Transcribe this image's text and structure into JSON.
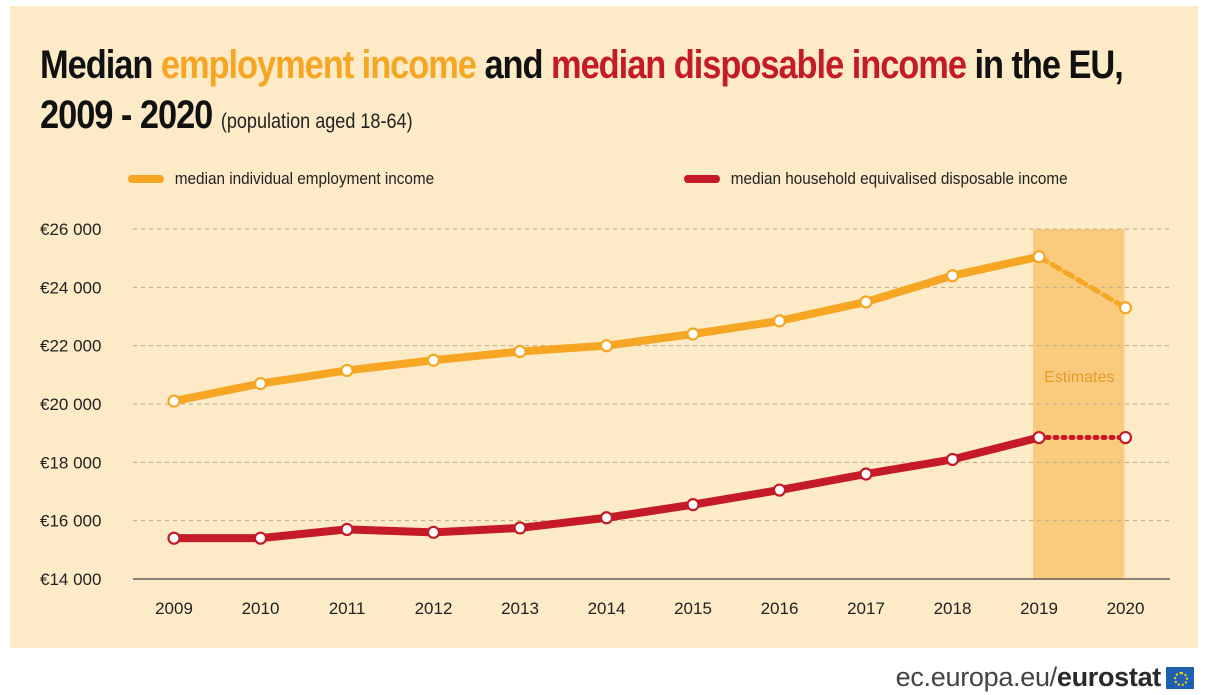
{
  "title": {
    "part1": "Median ",
    "part2": "employment income",
    "part3": " and ",
    "part4": "median disposable income",
    "part5": " in the EU,",
    "line2": "2009 - 2020",
    "subtitle": "(population aged 18-64)"
  },
  "colors": {
    "employment": "#f6a623",
    "disposable": "#c41b27",
    "estimate_band": "#f8c770",
    "background": "#fdebc8"
  },
  "footer": {
    "domain": "ec.europa.eu/",
    "brand": "eurostat",
    "icon": "eu-flag-icon"
  },
  "chart_data": {
    "type": "line",
    "categories": [
      "2009",
      "2010",
      "2011",
      "2012",
      "2013",
      "2014",
      "2015",
      "2016",
      "2017",
      "2018",
      "2019",
      "2020"
    ],
    "series": [
      {
        "name": "median individual employment income",
        "values": [
          20100,
          20700,
          21150,
          21500,
          21800,
          22000,
          22400,
          22850,
          23500,
          24400,
          25050,
          23300
        ]
      },
      {
        "name": "median household equivalised disposable income",
        "values": [
          15400,
          15400,
          15700,
          15600,
          15750,
          16100,
          16550,
          17050,
          17600,
          18100,
          18850,
          18850
        ]
      }
    ],
    "estimate_range": [
      "2019",
      "2020"
    ],
    "estimate_label": "Estimates",
    "ylim": [
      14000,
      26000
    ],
    "yticks": [
      14000,
      16000,
      18000,
      20000,
      22000,
      24000,
      26000
    ],
    "ytick_labels": [
      "€14 000",
      "€16 000",
      "€18 000",
      "€20 000",
      "€22 000",
      "€24 000",
      "€26 000"
    ],
    "grid": true,
    "legend_position": "top"
  }
}
